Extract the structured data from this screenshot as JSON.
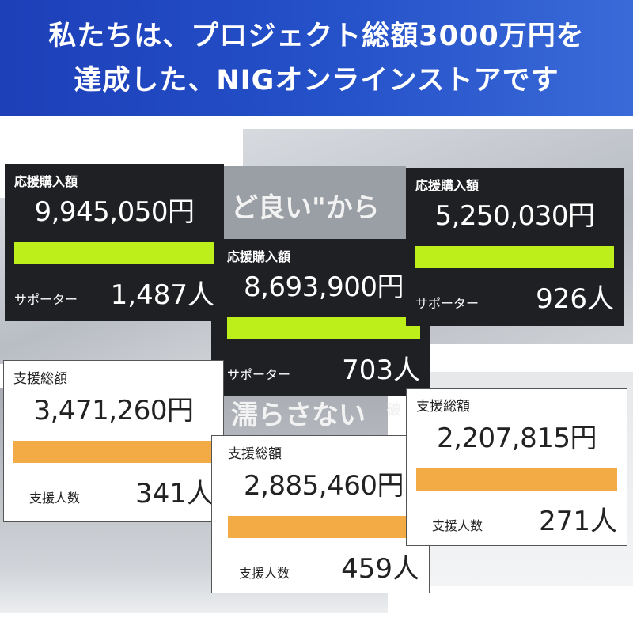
{
  "header": {
    "line1": "私たちは、プロジェクト総額3000万円を",
    "line2": "達成した、NIGオンラインストアです"
  },
  "background_text": [
    "ど良い\"から",
    "濡らさない",
    "破"
  ],
  "colors": {
    "header": "#2450c8",
    "dark_card": "#1f2024",
    "green_bar": "#bdf01a",
    "orange_bar": "#f3ab45"
  },
  "dark_cards": [
    {
      "label": "応援購入額",
      "amount": "9,945,050円",
      "count_label": "サポーター",
      "count": "1,487人"
    },
    {
      "label": "応援購入額",
      "amount": "8,693,900円",
      "count_label": "サポーター",
      "count": "703人"
    },
    {
      "label": "応援購入額",
      "amount": "5,250,030円",
      "count_label": "サポーター",
      "count": "926人"
    }
  ],
  "light_cards": [
    {
      "label": "支援総額",
      "amount": "3,471,260円",
      "count_label": "支援人数",
      "count": "341人"
    },
    {
      "label": "支援総額",
      "amount": "2,885,460円",
      "count_label": "支援人数",
      "count": "459人"
    },
    {
      "label": "支援総額",
      "amount": "2,207,815円",
      "count_label": "支援人数",
      "count": "271人"
    }
  ]
}
